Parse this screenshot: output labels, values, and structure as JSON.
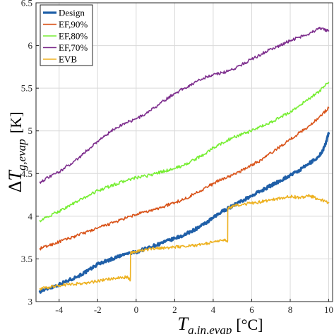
{
  "chart_data": {
    "type": "line",
    "title": "",
    "xlabel": "T_{g,in,evap} [°C]",
    "ylabel": "ΔT_{g,evap} [K]",
    "xlim": [
      -5.2,
      10.2
    ],
    "ylim": [
      3.0,
      6.5
    ],
    "xticks": [
      -4,
      -2,
      0,
      2,
      4,
      6,
      8,
      10
    ],
    "yticks": [
      3,
      3.5,
      4,
      4.5,
      5,
      5.5,
      6,
      6.5
    ],
    "grid": true,
    "legend_position": "top-left",
    "series": [
      {
        "name": "Design",
        "color": "#1f5fa8",
        "width": 3.2,
        "x": [
          -5.0,
          -4.5,
          -4.0,
          -3.5,
          -3.0,
          -2.5,
          -2.0,
          -1.5,
          -1.0,
          -0.5,
          0.0,
          0.5,
          1.0,
          1.5,
          2.0,
          2.5,
          3.0,
          3.5,
          4.0,
          4.5,
          5.0,
          5.5,
          6.0,
          6.5,
          7.0,
          7.5,
          8.0,
          8.5,
          9.0,
          9.5,
          9.8,
          10.0
        ],
        "y": [
          3.12,
          3.16,
          3.2,
          3.25,
          3.3,
          3.36,
          3.44,
          3.48,
          3.52,
          3.56,
          3.58,
          3.62,
          3.66,
          3.7,
          3.74,
          3.78,
          3.84,
          3.9,
          3.98,
          4.06,
          4.12,
          4.18,
          4.24,
          4.3,
          4.36,
          4.42,
          4.48,
          4.54,
          4.62,
          4.7,
          4.82,
          4.97
        ]
      },
      {
        "name": "EF,90%",
        "color": "#d95319",
        "width": 1.6,
        "x": [
          -5.0,
          -4.5,
          -4.0,
          -3.5,
          -3.0,
          -2.5,
          -2.0,
          -1.5,
          -1.0,
          -0.5,
          0.0,
          0.5,
          1.0,
          1.5,
          2.0,
          2.5,
          3.0,
          3.5,
          4.0,
          4.5,
          5.0,
          5.5,
          6.0,
          6.5,
          7.0,
          7.5,
          8.0,
          8.5,
          9.0,
          9.5,
          10.0
        ],
        "y": [
          3.62,
          3.66,
          3.7,
          3.74,
          3.78,
          3.82,
          3.86,
          3.9,
          3.94,
          3.98,
          4.02,
          4.05,
          4.08,
          4.12,
          4.16,
          4.2,
          4.26,
          4.32,
          4.38,
          4.44,
          4.48,
          4.54,
          4.6,
          4.66,
          4.74,
          4.82,
          4.9,
          4.98,
          5.06,
          5.16,
          5.27
        ]
      },
      {
        "name": "EF,80%",
        "color": "#77ee33",
        "width": 1.6,
        "x": [
          -5.0,
          -4.5,
          -4.0,
          -3.5,
          -3.0,
          -2.5,
          -2.0,
          -1.5,
          -1.0,
          -0.5,
          0.0,
          0.5,
          1.0,
          1.5,
          2.0,
          2.5,
          3.0,
          3.5,
          4.0,
          4.5,
          5.0,
          5.5,
          6.0,
          6.5,
          7.0,
          7.5,
          8.0,
          8.5,
          9.0,
          9.5,
          10.0
        ],
        "y": [
          3.95,
          4.0,
          4.06,
          4.12,
          4.18,
          4.24,
          4.3,
          4.34,
          4.38,
          4.42,
          4.45,
          4.47,
          4.5,
          4.53,
          4.56,
          4.6,
          4.66,
          4.72,
          4.8,
          4.86,
          4.92,
          4.96,
          5.0,
          5.05,
          5.1,
          5.16,
          5.22,
          5.3,
          5.38,
          5.46,
          5.57
        ]
      },
      {
        "name": "EF,70%",
        "color": "#7e2f8e",
        "width": 1.6,
        "x": [
          -5.0,
          -4.5,
          -4.0,
          -3.5,
          -3.0,
          -2.5,
          -2.0,
          -1.5,
          -1.0,
          -0.5,
          0.0,
          0.5,
          1.0,
          1.5,
          2.0,
          2.5,
          3.0,
          3.5,
          4.0,
          4.5,
          5.0,
          5.5,
          6.0,
          6.5,
          7.0,
          7.5,
          8.0,
          8.5,
          9.0,
          9.5,
          10.0
        ],
        "y": [
          4.4,
          4.46,
          4.52,
          4.6,
          4.68,
          4.78,
          4.88,
          4.96,
          5.04,
          5.1,
          5.14,
          5.2,
          5.28,
          5.36,
          5.44,
          5.5,
          5.56,
          5.62,
          5.66,
          5.68,
          5.72,
          5.78,
          5.84,
          5.9,
          5.96,
          6.0,
          6.06,
          6.1,
          6.14,
          6.2,
          6.17
        ]
      },
      {
        "name": "EVB",
        "color": "#edb120",
        "width": 1.6,
        "x": [
          -5.0,
          -4.5,
          -4.0,
          -3.5,
          -3.0,
          -2.5,
          -2.0,
          -1.5,
          -1.0,
          -0.5,
          -0.3,
          -0.29,
          0.0,
          0.5,
          1.0,
          1.5,
          2.0,
          2.5,
          3.0,
          3.5,
          4.0,
          4.5,
          4.75,
          4.76,
          5.0,
          5.5,
          6.0,
          6.5,
          7.0,
          7.5,
          8.0,
          8.5,
          9.0,
          9.5,
          10.0
        ],
        "y": [
          3.15,
          3.17,
          3.19,
          3.2,
          3.21,
          3.22,
          3.24,
          3.26,
          3.27,
          3.29,
          3.25,
          3.57,
          3.59,
          3.61,
          3.62,
          3.63,
          3.64,
          3.65,
          3.66,
          3.67,
          3.7,
          3.72,
          3.71,
          4.09,
          4.12,
          4.14,
          4.15,
          4.17,
          4.19,
          4.21,
          4.23,
          4.22,
          4.24,
          4.2,
          4.16
        ]
      }
    ]
  }
}
